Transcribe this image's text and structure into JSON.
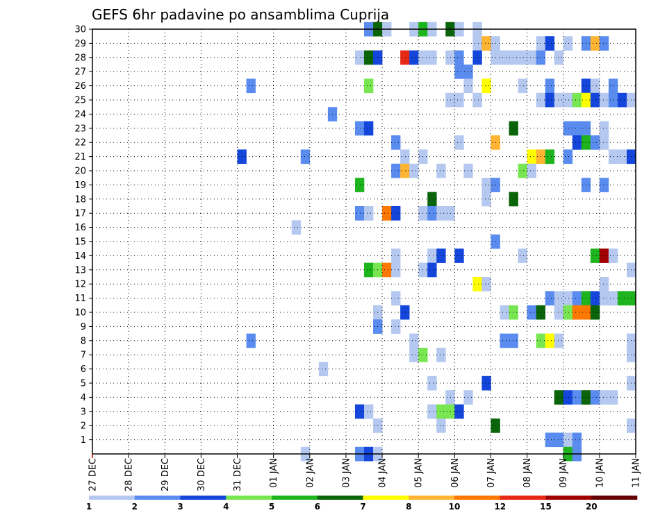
{
  "chart_data": {
    "type": "heatmap",
    "title": "GEFS 6hr padavine po ansamblima Cuprija",
    "xlabel": "",
    "ylabel": "",
    "x_ticks": [
      "27 DEC",
      "28 DEC",
      "29 DEC",
      "30 DEC",
      "31 DEC",
      "01 JAN",
      "02 JAN",
      "03 JAN",
      "04 JAN",
      "05 JAN",
      "06 JAN",
      "07 JAN",
      "08 JAN",
      "09 JAN",
      "10 JAN",
      "11 JAN"
    ],
    "y_ticks": [
      "1",
      "2",
      "3",
      "4",
      "5",
      "6",
      "7",
      "8",
      "9",
      "10",
      "11",
      "12",
      "13",
      "14",
      "15",
      "16",
      "17",
      "18",
      "19",
      "20",
      "21",
      "22",
      "23",
      "24",
      "25",
      "26",
      "27",
      "28",
      "29",
      "30"
    ],
    "ylim": [
      0,
      30
    ],
    "time_steps_per_day": 4,
    "grid": true,
    "legend": {
      "placement": "bottom",
      "labels": [
        "1",
        "2",
        "3",
        "4",
        "5",
        "6",
        "7",
        "8",
        "10",
        "12",
        "15",
        "20"
      ],
      "colors": [
        "#b4c8f0",
        "#5a8cf0",
        "#1446dc",
        "#78e650",
        "#1eb41e",
        "#0a640a",
        "#ffff00",
        "#ffb432",
        "#ff7800",
        "#e62814",
        "#a00000",
        "#640000"
      ]
    },
    "cells": [
      {
        "m": 30,
        "t": [
          [
            30,
            2
          ],
          [
            31,
            6
          ],
          [
            32,
            1
          ],
          [
            35,
            1
          ],
          [
            36,
            5
          ],
          [
            37,
            1
          ],
          [
            39,
            6
          ],
          [
            40,
            1
          ],
          [
            42,
            1
          ]
        ]
      },
      {
        "m": 29,
        "t": [
          [
            42,
            1
          ],
          [
            43,
            8
          ],
          [
            44,
            1
          ],
          [
            49,
            1
          ],
          [
            50,
            3
          ],
          [
            52,
            1
          ],
          [
            54,
            2
          ],
          [
            55,
            8
          ],
          [
            56,
            2
          ]
        ]
      },
      {
        "m": 28,
        "t": [
          [
            29,
            1
          ],
          [
            30,
            6
          ],
          [
            31,
            3
          ],
          [
            34,
            10
          ],
          [
            35,
            3
          ],
          [
            36,
            1
          ],
          [
            37,
            1
          ],
          [
            39,
            1
          ],
          [
            40,
            2
          ],
          [
            42,
            3
          ],
          [
            44,
            1
          ],
          [
            45,
            1
          ],
          [
            46,
            1
          ],
          [
            47,
            1
          ],
          [
            48,
            1
          ],
          [
            49,
            2
          ],
          [
            51,
            1
          ]
        ]
      },
      {
        "m": 27,
        "t": [
          [
            40,
            2
          ],
          [
            41,
            2
          ]
        ]
      },
      {
        "m": 26,
        "t": [
          [
            17,
            2
          ],
          [
            30,
            4
          ],
          [
            41,
            1
          ],
          [
            43,
            7
          ],
          [
            47,
            1
          ],
          [
            50,
            2
          ],
          [
            54,
            3
          ],
          [
            55,
            1
          ],
          [
            57,
            2
          ]
        ]
      },
      {
        "m": 25,
        "t": [
          [
            39,
            1
          ],
          [
            40,
            1
          ],
          [
            42,
            1
          ],
          [
            49,
            1
          ],
          [
            50,
            3
          ],
          [
            51,
            1
          ],
          [
            52,
            1
          ],
          [
            53,
            4
          ],
          [
            54,
            7
          ],
          [
            55,
            3
          ],
          [
            56,
            1
          ],
          [
            57,
            2
          ],
          [
            58,
            3
          ],
          [
            59,
            1
          ]
        ]
      },
      {
        "m": 24,
        "t": [
          [
            26,
            2
          ]
        ]
      },
      {
        "m": 23,
        "t": [
          [
            29,
            2
          ],
          [
            30,
            3
          ],
          [
            46,
            6
          ],
          [
            52,
            2
          ],
          [
            53,
            2
          ],
          [
            54,
            2
          ],
          [
            56,
            1
          ]
        ]
      },
      {
        "m": 22,
        "t": [
          [
            33,
            2
          ],
          [
            40,
            1
          ],
          [
            44,
            8
          ],
          [
            53,
            3
          ],
          [
            54,
            5
          ],
          [
            55,
            2
          ],
          [
            56,
            1
          ]
        ]
      },
      {
        "m": 21,
        "t": [
          [
            16,
            3
          ],
          [
            23,
            2
          ],
          [
            34,
            1
          ],
          [
            36,
            1
          ],
          [
            48,
            7
          ],
          [
            49,
            8
          ],
          [
            50,
            5
          ],
          [
            52,
            2
          ],
          [
            57,
            1
          ],
          [
            58,
            1
          ],
          [
            59,
            3
          ]
        ]
      },
      {
        "m": 20,
        "t": [
          [
            33,
            2
          ],
          [
            34,
            8
          ],
          [
            35,
            1
          ],
          [
            38,
            1
          ],
          [
            41,
            1
          ],
          [
            47,
            4
          ],
          [
            48,
            1
          ]
        ]
      },
      {
        "m": 19,
        "t": [
          [
            29,
            5
          ],
          [
            43,
            1
          ],
          [
            44,
            2
          ],
          [
            54,
            2
          ],
          [
            56,
            2
          ]
        ]
      },
      {
        "m": 18,
        "t": [
          [
            37,
            6
          ],
          [
            43,
            1
          ],
          [
            46,
            6
          ]
        ]
      },
      {
        "m": 17,
        "t": [
          [
            29,
            2
          ],
          [
            30,
            1
          ],
          [
            32,
            9
          ],
          [
            33,
            3
          ],
          [
            36,
            1
          ],
          [
            37,
            2
          ],
          [
            38,
            1
          ],
          [
            39,
            1
          ]
        ]
      },
      {
        "m": 16,
        "t": [
          [
            22,
            1
          ]
        ]
      },
      {
        "m": 15,
        "t": [
          [
            44,
            2
          ]
        ]
      },
      {
        "m": 14,
        "t": [
          [
            33,
            1
          ],
          [
            37,
            1
          ],
          [
            38,
            3
          ],
          [
            40,
            3
          ],
          [
            47,
            1
          ],
          [
            55,
            5
          ],
          [
            56,
            11
          ],
          [
            57,
            1
          ]
        ]
      },
      {
        "m": 13,
        "t": [
          [
            30,
            5
          ],
          [
            31,
            4
          ],
          [
            32,
            9
          ],
          [
            33,
            1
          ],
          [
            36,
            1
          ],
          [
            37,
            3
          ],
          [
            59,
            1
          ]
        ]
      },
      {
        "m": 12,
        "t": [
          [
            42,
            7
          ],
          [
            43,
            1
          ],
          [
            56,
            1
          ]
        ]
      },
      {
        "m": 11,
        "t": [
          [
            33,
            1
          ],
          [
            50,
            2
          ],
          [
            51,
            1
          ],
          [
            52,
            1
          ],
          [
            53,
            2
          ],
          [
            54,
            5
          ],
          [
            55,
            3
          ],
          [
            56,
            1
          ],
          [
            57,
            1
          ],
          [
            58,
            5
          ],
          [
            59,
            5
          ]
        ]
      },
      {
        "m": 10,
        "t": [
          [
            31,
            1
          ],
          [
            34,
            3
          ],
          [
            45,
            1
          ],
          [
            46,
            4
          ],
          [
            48,
            2
          ],
          [
            49,
            6
          ],
          [
            51,
            1
          ],
          [
            52,
            4
          ],
          [
            53,
            9
          ],
          [
            54,
            9
          ],
          [
            55,
            6
          ]
        ]
      },
      {
        "m": 9,
        "t": [
          [
            31,
            2
          ],
          [
            33,
            1
          ]
        ]
      },
      {
        "m": 8,
        "t": [
          [
            17,
            2
          ],
          [
            35,
            1
          ],
          [
            45,
            2
          ],
          [
            46,
            2
          ],
          [
            49,
            4
          ],
          [
            50,
            7
          ],
          [
            51,
            1
          ],
          [
            59,
            1
          ]
        ]
      },
      {
        "m": 7,
        "t": [
          [
            35,
            1
          ],
          [
            36,
            4
          ],
          [
            38,
            1
          ],
          [
            59,
            1
          ]
        ]
      },
      {
        "m": 6,
        "t": [
          [
            25,
            1
          ]
        ]
      },
      {
        "m": 5,
        "t": [
          [
            37,
            1
          ],
          [
            43,
            3
          ],
          [
            59,
            1
          ]
        ]
      },
      {
        "m": 4,
        "t": [
          [
            39,
            1
          ],
          [
            41,
            1
          ],
          [
            51,
            6
          ],
          [
            52,
            3
          ],
          [
            53,
            2
          ],
          [
            54,
            6
          ],
          [
            55,
            2
          ],
          [
            56,
            1
          ],
          [
            57,
            1
          ]
        ]
      },
      {
        "m": 3,
        "t": [
          [
            29,
            3
          ],
          [
            30,
            1
          ],
          [
            37,
            1
          ],
          [
            38,
            4
          ],
          [
            39,
            4
          ],
          [
            40,
            3
          ]
        ]
      },
      {
        "m": 2,
        "t": [
          [
            31,
            1
          ],
          [
            38,
            1
          ],
          [
            44,
            6
          ],
          [
            59,
            1
          ]
        ]
      },
      {
        "m": 1,
        "t": [
          [
            50,
            2
          ],
          [
            51,
            2
          ],
          [
            52,
            1
          ],
          [
            53,
            2
          ]
        ]
      },
      {
        "m": 0,
        "t": [
          [
            23,
            1
          ],
          [
            29,
            2
          ],
          [
            30,
            3
          ],
          [
            31,
            1
          ],
          [
            52,
            5
          ],
          [
            53,
            2
          ]
        ]
      }
    ]
  }
}
